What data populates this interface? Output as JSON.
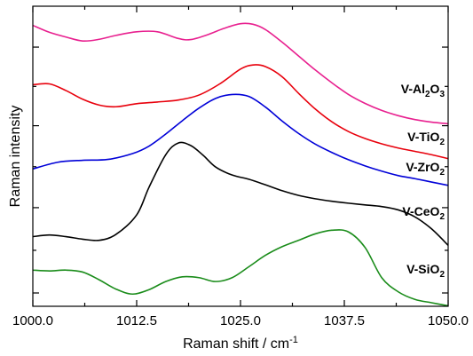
{
  "chart_data": {
    "type": "line",
    "xlabel": "Raman shift / cm",
    "xlabel_sup": "-1",
    "ylabel": "Raman intensity",
    "xlim": [
      1000.0,
      1050.0
    ],
    "ylim": [
      0,
      100
    ],
    "x_ticks": [
      1000.0,
      1012.5,
      1025.0,
      1037.5,
      1050.0
    ],
    "x_tick_labels": [
      "1000.0",
      "1012.5",
      "1025.0",
      "1037.5",
      "1050.0"
    ],
    "x_minor_step": 6.25,
    "y_major_ticks": [
      0,
      30.6,
      60,
      88.2
    ],
    "y_minor_ticks": [
      15.3,
      45.3,
      74.1
    ],
    "y_tick_labels_shown": false,
    "grid": false,
    "legend": "none",
    "series": [
      {
        "name": "V-Al2O3",
        "label_parts": [
          [
            "V-Al",
            false
          ],
          [
            "2",
            true
          ],
          [
            "O",
            false
          ],
          [
            "3",
            true
          ]
        ],
        "color": "#e8208f",
        "x": [
          1000.0,
          1002.0,
          1004.0,
          1006.0,
          1008.0,
          1010.0,
          1012.5,
          1015.0,
          1017.5,
          1019.0,
          1021.0,
          1023.0,
          1025.0,
          1026.5,
          1028.0,
          1030.0,
          1032.0,
          1034.0,
          1036.0,
          1038.0,
          1040.0,
          1042.0,
          1044.0,
          1046.0,
          1048.0,
          1050.0
        ],
        "y": [
          96.0,
          93.5,
          91.8,
          90.4,
          91.0,
          92.4,
          93.7,
          93.7,
          91.3,
          90.9,
          92.6,
          94.9,
          96.6,
          96.4,
          94.5,
          90.0,
          85.0,
          80.0,
          75.4,
          71.2,
          68.0,
          65.5,
          63.6,
          62.2,
          61.3,
          60.7
        ]
      },
      {
        "name": "V-TiO2",
        "label_parts": [
          [
            "V-TiO",
            false
          ],
          [
            "2",
            true
          ]
        ],
        "color": "#e8000c",
        "x": [
          1000.0,
          1002.0,
          1004.0,
          1006.0,
          1008.0,
          1010.0,
          1012.5,
          1015.0,
          1017.5,
          1020.0,
          1022.5,
          1025.0,
          1026.5,
          1028.0,
          1030.0,
          1032.0,
          1034.0,
          1036.0,
          1038.0,
          1040.0,
          1042.0,
          1044.0,
          1046.0,
          1048.0,
          1050.0
        ],
        "y": [
          74.7,
          75.0,
          72.6,
          69.5,
          67.4,
          66.8,
          67.9,
          68.5,
          69.2,
          71.0,
          75.0,
          80.3,
          81.8,
          81.2,
          77.6,
          71.6,
          66.0,
          61.4,
          57.9,
          55.4,
          53.5,
          52.0,
          50.8,
          49.6,
          48.2
        ]
      },
      {
        "name": "V-ZrO2",
        "label_parts": [
          [
            "V-ZrO",
            false
          ],
          [
            "2",
            true
          ]
        ],
        "color": "#0000d8",
        "x": [
          1000.0,
          1003.0,
          1006.0,
          1009.0,
          1012.0,
          1014.0,
          1016.0,
          1018.0,
          1020.0,
          1022.0,
          1024.0,
          1026.0,
          1028.0,
          1030.0,
          1032.0,
          1034.0,
          1036.0,
          1038.0,
          1040.0,
          1042.0,
          1044.0,
          1046.0,
          1048.0,
          1050.0
        ],
        "y": [
          44.5,
          46.9,
          47.6,
          47.9,
          50.0,
          52.7,
          57.0,
          61.8,
          66.3,
          69.8,
          71.2,
          70.5,
          66.7,
          61.7,
          57.2,
          53.4,
          50.4,
          47.8,
          45.6,
          43.7,
          42.1,
          41.0,
          39.8,
          38.6
        ]
      },
      {
        "name": "V-CeO2",
        "label_parts": [
          [
            "V-CeO",
            false
          ],
          [
            "2",
            true
          ]
        ],
        "color": "#000000",
        "x": [
          1000.0,
          1002.0,
          1004.0,
          1006.0,
          1008.0,
          1010.0,
          1012.5,
          1014.0,
          1016.0,
          1017.5,
          1019.0,
          1020.5,
          1022.0,
          1024.0,
          1026.0,
          1028.0,
          1030.0,
          1032.0,
          1034.0,
          1036.0,
          1038.0,
          1040.0,
          1042.0,
          1044.0,
          1046.0,
          1048.0,
          1050.0
        ],
        "y": [
          20.2,
          20.8,
          20.2,
          19.3,
          18.9,
          21.0,
          28.0,
          38.0,
          49.6,
          53.8,
          52.9,
          49.4,
          45.2,
          42.3,
          40.8,
          38.8,
          36.7,
          35.0,
          33.8,
          32.9,
          32.2,
          31.6,
          31.0,
          29.8,
          27.3,
          23.0,
          17.1
        ]
      },
      {
        "name": "V-SiO2",
        "label_parts": [
          [
            "V-SiO",
            false
          ],
          [
            "2",
            true
          ]
        ],
        "color": "#1a8c1a",
        "x": [
          1000.0,
          1002.0,
          1004.0,
          1006.0,
          1008.0,
          1010.0,
          1012.0,
          1014.0,
          1016.0,
          1018.0,
          1020.0,
          1022.0,
          1024.0,
          1026.0,
          1028.0,
          1030.0,
          1032.0,
          1034.0,
          1036.0,
          1038.0,
          1040.0,
          1042.0,
          1044.0,
          1046.0,
          1048.0,
          1050.0
        ],
        "y": [
          8.2,
          7.9,
          8.2,
          7.5,
          4.7,
          1.4,
          -0.4,
          1.2,
          4.1,
          5.8,
          5.5,
          4.1,
          5.5,
          9.4,
          13.5,
          16.6,
          18.9,
          21.2,
          22.5,
          21.9,
          16.3,
          5.5,
          0.4,
          -2.3,
          -3.5,
          -4.6
        ]
      }
    ]
  }
}
